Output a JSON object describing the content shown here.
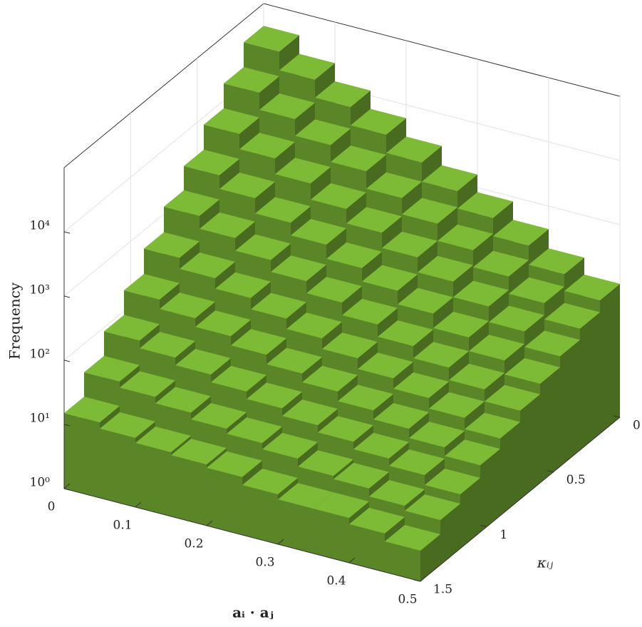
{
  "chart_data": {
    "type": "bar3d",
    "xlabel": "aᵢ · aⱼ",
    "ylabel": "κᵢⱼ",
    "zlabel": "Frequency",
    "x_bins": [
      0,
      0.05,
      0.1,
      0.15,
      0.2,
      0.25,
      0.3,
      0.35,
      0.4,
      0.45,
      0.5
    ],
    "y_bins": [
      0,
      0.15,
      0.3,
      0.45,
      0.6,
      0.75,
      0.9,
      1.05,
      1.2,
      1.35,
      1.5
    ],
    "values": [
      [
        45000,
        23000,
        12000,
        6200,
        3200,
        1600,
        850,
        440,
        220,
        120
      ],
      [
        18500,
        10000,
        5500,
        3000,
        1600,
        890,
        480,
        260,
        140,
        78
      ],
      [
        7600,
        4400,
        2500,
        1400,
        830,
        480,
        280,
        160,
        91,
        52
      ],
      [
        3100,
        1900,
        1100,
        700,
        420,
        260,
        160,
        95,
        58,
        35
      ],
      [
        1300,
        820,
        520,
        340,
        220,
        140,
        90,
        58,
        37,
        24
      ],
      [
        520,
        350,
        240,
        160,
        110,
        75,
        51,
        35,
        24,
        16
      ],
      [
        210,
        150,
        110,
        79,
        56,
        41,
        29,
        21,
        15,
        11
      ],
      [
        87,
        66,
        50,
        38,
        29,
        22,
        17,
        13,
        10,
        7
      ],
      [
        36,
        29,
        23,
        18,
        15,
        12,
        9,
        8,
        6,
        5
      ],
      [
        15,
        12,
        10,
        9,
        8,
        6,
        5,
        5,
        4,
        3
      ]
    ],
    "color": "#6a9e2e",
    "xlim": [
      0,
      0.5
    ],
    "xticks": [
      0,
      0.1,
      0.2,
      0.3,
      0.4,
      0.5
    ],
    "ylim": [
      0,
      1.5
    ],
    "yticks": [
      0,
      0.5,
      1,
      1.5
    ],
    "zlim": [
      1,
      100000
    ],
    "zscale": "log",
    "zticks": [
      {
        "value": 1,
        "label": "10⁰"
      },
      {
        "value": 10,
        "label": "10¹"
      },
      {
        "value": 100,
        "label": "10²"
      },
      {
        "value": 1000,
        "label": "10³"
      },
      {
        "value": 10000,
        "label": "10⁴"
      }
    ],
    "grid": true
  }
}
